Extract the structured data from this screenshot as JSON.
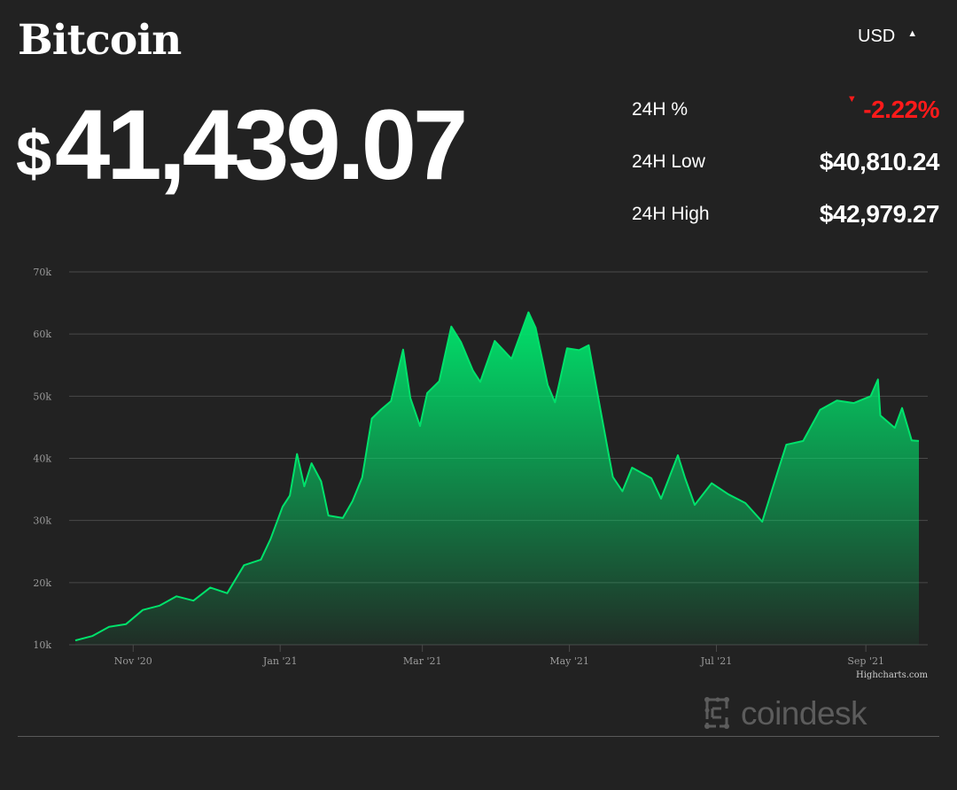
{
  "asset": {
    "name": "Bitcoin",
    "currency": "USD"
  },
  "price": {
    "symbol": "$",
    "value": "41,439.07"
  },
  "stats": [
    {
      "label": "24H %",
      "value": "-2.22%",
      "direction": "down"
    },
    {
      "label": "24H Low",
      "value": "$40,810.24"
    },
    {
      "label": "24H High",
      "value": "$42,979.27"
    }
  ],
  "colors": {
    "background": "#222222",
    "negative": "#ff1a1a",
    "line": "#00e26b",
    "grid": "#4a4a4a",
    "axis_text": "#9a9a9a",
    "logo": "#5c5c5c"
  },
  "icons": {
    "currency_toggle": "caret-up-icon",
    "change": "triangle-down-icon",
    "brand": "coindesk-logo-icon"
  },
  "credit": "Highcharts.com",
  "brand": "coindesk",
  "chart_data": {
    "type": "area",
    "title": "",
    "xlabel": "",
    "ylabel": "",
    "x_range": [
      "2020-10-08",
      "2021-09-23"
    ],
    "ylim": [
      10000,
      70000
    ],
    "grid": true,
    "legend": "none",
    "y_ticks": [
      {
        "value": 10000,
        "label": "10k"
      },
      {
        "value": 20000,
        "label": "20k"
      },
      {
        "value": 30000,
        "label": "30k"
      },
      {
        "value": 40000,
        "label": "40k"
      },
      {
        "value": 50000,
        "label": "50k"
      },
      {
        "value": 60000,
        "label": "60k"
      },
      {
        "value": 70000,
        "label": "70k"
      }
    ],
    "x_ticks": [
      {
        "date": "2020-11-01",
        "label": "Nov '20"
      },
      {
        "date": "2021-01-01",
        "label": "Jan '21"
      },
      {
        "date": "2021-03-01",
        "label": "Mar '21"
      },
      {
        "date": "2021-05-01",
        "label": "May '21"
      },
      {
        "date": "2021-07-01",
        "label": "Jul '21"
      },
      {
        "date": "2021-09-01",
        "label": "Sep '21"
      }
    ],
    "series": [
      {
        "points": [
          [
            "2020-10-08",
            10700
          ],
          [
            "2020-10-15",
            11400
          ],
          [
            "2020-10-22",
            12900
          ],
          [
            "2020-10-29",
            13300
          ],
          [
            "2020-11-05",
            15600
          ],
          [
            "2020-11-12",
            16300
          ],
          [
            "2020-11-19",
            17800
          ],
          [
            "2020-11-26",
            17100
          ],
          [
            "2020-12-03",
            19200
          ],
          [
            "2020-12-10",
            18300
          ],
          [
            "2020-12-17",
            22800
          ],
          [
            "2020-12-24",
            23700
          ],
          [
            "2020-12-28",
            27000
          ],
          [
            "2021-01-02",
            32200
          ],
          [
            "2021-01-05",
            34000
          ],
          [
            "2021-01-08",
            40700
          ],
          [
            "2021-01-11",
            35500
          ],
          [
            "2021-01-14",
            39200
          ],
          [
            "2021-01-18",
            36300
          ],
          [
            "2021-01-21",
            30800
          ],
          [
            "2021-01-27",
            30400
          ],
          [
            "2021-01-31",
            33100
          ],
          [
            "2021-02-04",
            36900
          ],
          [
            "2021-02-08",
            46400
          ],
          [
            "2021-02-12",
            47900
          ],
          [
            "2021-02-16",
            49200
          ],
          [
            "2021-02-21",
            57500
          ],
          [
            "2021-02-24",
            49700
          ],
          [
            "2021-02-28",
            45200
          ],
          [
            "2021-03-03",
            50500
          ],
          [
            "2021-03-08",
            52400
          ],
          [
            "2021-03-13",
            61200
          ],
          [
            "2021-03-17",
            58700
          ],
          [
            "2021-03-22",
            54100
          ],
          [
            "2021-03-25",
            52300
          ],
          [
            "2021-03-31",
            58900
          ],
          [
            "2021-04-07",
            56000
          ],
          [
            "2021-04-14",
            63500
          ],
          [
            "2021-04-17",
            61000
          ],
          [
            "2021-04-22",
            51800
          ],
          [
            "2021-04-25",
            49000
          ],
          [
            "2021-04-30",
            57700
          ],
          [
            "2021-05-05",
            57400
          ],
          [
            "2021-05-09",
            58200
          ],
          [
            "2021-05-13",
            49700
          ],
          [
            "2021-05-19",
            37000
          ],
          [
            "2021-05-23",
            34700
          ],
          [
            "2021-05-27",
            38500
          ],
          [
            "2021-06-04",
            36800
          ],
          [
            "2021-06-08",
            33500
          ],
          [
            "2021-06-15",
            40500
          ],
          [
            "2021-06-18",
            36800
          ],
          [
            "2021-06-22",
            32500
          ],
          [
            "2021-06-29",
            36000
          ],
          [
            "2021-07-06",
            34200
          ],
          [
            "2021-07-13",
            32800
          ],
          [
            "2021-07-20",
            29800
          ],
          [
            "2021-07-26",
            37300
          ],
          [
            "2021-07-30",
            42200
          ],
          [
            "2021-08-06",
            42800
          ],
          [
            "2021-08-13",
            47800
          ],
          [
            "2021-08-20",
            49300
          ],
          [
            "2021-08-27",
            48900
          ],
          [
            "2021-09-03",
            50000
          ],
          [
            "2021-09-06",
            52700
          ],
          [
            "2021-09-07",
            46900
          ],
          [
            "2021-09-13",
            44900
          ],
          [
            "2021-09-16",
            48100
          ],
          [
            "2021-09-20",
            42900
          ],
          [
            "2021-09-23",
            42800
          ]
        ]
      }
    ]
  }
}
